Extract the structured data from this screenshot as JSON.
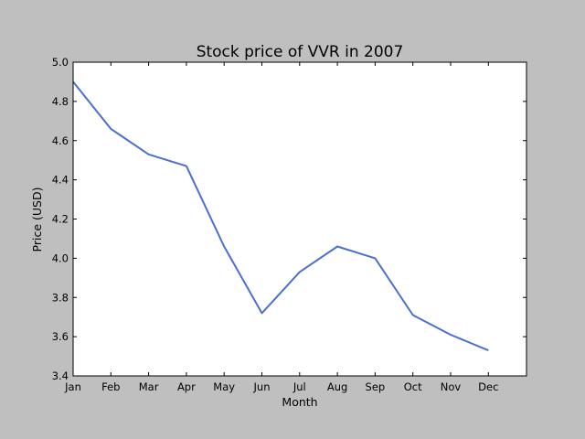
{
  "chart_data": {
    "type": "line",
    "title": "Stock price of VVR in 2007",
    "xlabel": "Month",
    "ylabel": "Price (USD)",
    "categories": [
      "Jan",
      "Feb",
      "Mar",
      "Apr",
      "May",
      "Jun",
      "Jul",
      "Aug",
      "Sep",
      "Oct",
      "Nov",
      "Dec"
    ],
    "series": [
      {
        "values": [
          4.9,
          4.66,
          4.53,
          4.47,
          4.06,
          3.72,
          3.93,
          4.06,
          4.0,
          3.71,
          3.61,
          3.53
        ],
        "color": "#4a6fd0"
      }
    ],
    "ylim": [
      3.4,
      5.0
    ],
    "yticks": [
      "3.4",
      "3.6",
      "3.8",
      "4.0",
      "4.2",
      "4.4",
      "4.6",
      "4.8",
      "5.0"
    ],
    "grid": false,
    "legend": "none",
    "colors": {
      "figure_background": "#bfbfbf",
      "plot_background": "#ffffff",
      "axes": "#000000"
    }
  }
}
